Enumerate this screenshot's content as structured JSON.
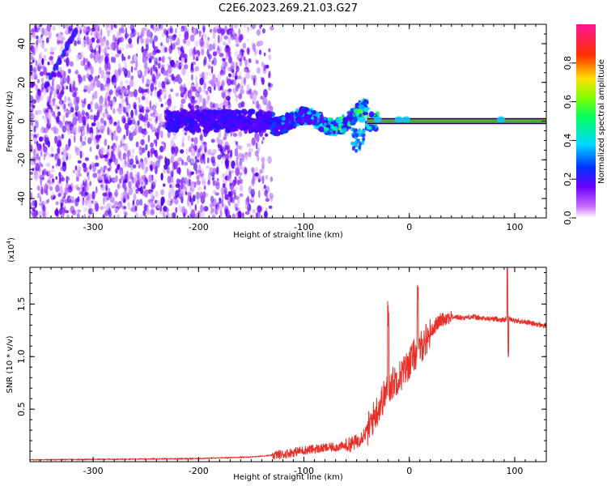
{
  "title": "C2E6.2023.269.21.03.G27",
  "chart_data": [
    {
      "type": "heatmap",
      "xlabel": "Height of straight line (km)",
      "ylabel": "Frequency (Hz)",
      "xlim": [
        -360,
        130
      ],
      "ylim": [
        -50,
        50
      ],
      "xticks": [
        -300,
        -200,
        -100,
        0,
        100
      ],
      "yticks": [
        -40,
        -20,
        0,
        20,
        40
      ],
      "colorbar": {
        "label": "Normalized spectral amplitude",
        "range": [
          0.0,
          1.0
        ],
        "ticks": [
          0.0,
          0.2,
          0.4,
          0.6,
          0.8
        ],
        "scale": "rainbow (white-violet-blue-cyan-green-yellow-red-pink)"
      },
      "features": {
        "noise_region_x": [
          -360,
          -140
        ],
        "oblique_streak": {
          "x": [
            -345,
            -315
          ],
          "y": [
            18,
            48
          ]
        },
        "band_center_y": 0,
        "band_peak_from_x": -40,
        "band_peak_to_x": 130
      }
    },
    {
      "type": "line",
      "ylabel": "SNR (10 * v/v)",
      "yscale_note": "(x10",
      "yscale_exp": "4",
      "xlabel": "Height of straight line (km)",
      "xlim": [
        -360,
        130
      ],
      "ylim": [
        0,
        18500
      ],
      "xticks": [
        -300,
        -200,
        -100,
        0,
        100
      ],
      "yticks": [
        "0.5",
        "1.0",
        "1.5"
      ],
      "yticks_values": [
        5000,
        10000,
        15000
      ],
      "color": "#e8302a",
      "series": [
        {
          "x": [
            -360,
            -300,
            -200,
            -150,
            -120,
            -100,
            -80,
            -60,
            -50,
            -40,
            -35,
            -30,
            -25,
            -20,
            -15,
            -10,
            -5,
            0,
            5,
            10,
            15,
            20,
            25,
            30,
            35,
            40,
            50,
            60,
            70,
            80,
            90,
            95,
            100,
            110,
            120,
            130
          ],
          "values": [
            180,
            220,
            300,
            450,
            700,
            1100,
            1300,
            1500,
            1900,
            2900,
            4000,
            5000,
            6000,
            7000,
            7600,
            8100,
            8600,
            9400,
            10200,
            10800,
            11500,
            12300,
            13000,
            13500,
            13700,
            13800,
            13700,
            13800,
            13600,
            13600,
            13500,
            13700,
            13400,
            13300,
            13100,
            12900
          ]
        }
      ]
    }
  ]
}
